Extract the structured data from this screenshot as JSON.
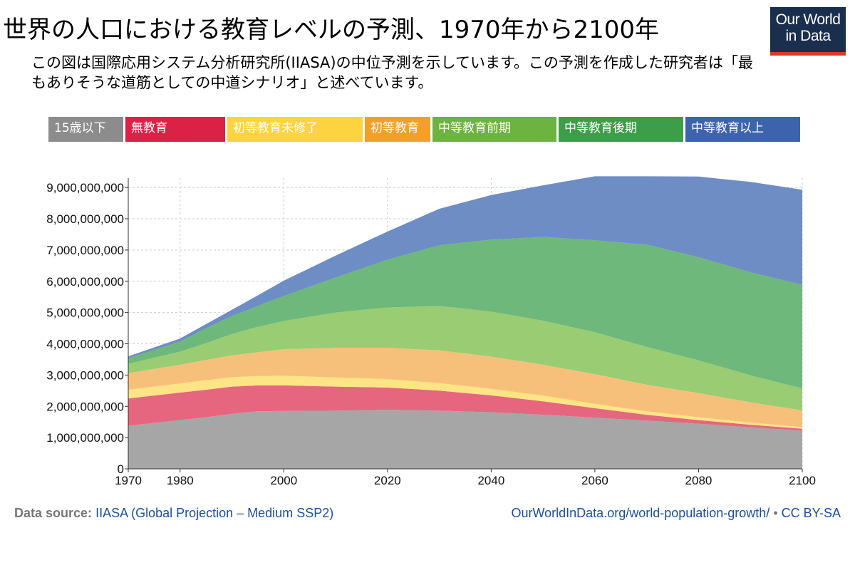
{
  "title": "世界の人口における教育レベルの予測、1970年から2100年",
  "subtitle": "この図は国際応用システム分析研究所(IIASA)の中位予測を示しています。この予測を作成した研究者は「最もありそうな道筋としての中道シナリオ」と述べています。",
  "logo": {
    "line1": "Our World",
    "line2": "in Data",
    "bg": "#1a2e4e",
    "accent": "#d73b22"
  },
  "footer": {
    "source_label": "Data source:",
    "source_text": "IIASA (Global Projection – Medium SSP2)",
    "url": "OurWorldInData.org/world-population-growth/",
    "separator": " • ",
    "license": "CC BY-SA"
  },
  "chart_data": {
    "type": "area",
    "stacked": true,
    "grid": true,
    "legend_position": "top",
    "x_ticks": [
      1970,
      1980,
      2000,
      2020,
      2040,
      2060,
      2080,
      2100
    ],
    "y_ticks": [
      0,
      1000000000,
      2000000000,
      3000000000,
      4000000000,
      5000000000,
      6000000000,
      7000000000,
      8000000000,
      9000000000
    ],
    "y_tick_labels": [
      "0",
      "1,000,000,000",
      "2,000,000,000",
      "3,000,000,000",
      "4,000,000,000",
      "5,000,000,000",
      "6,000,000,000",
      "7,000,000,000",
      "8,000,000,000",
      "9,000,000,000"
    ],
    "xlim": [
      1970,
      2100
    ],
    "ylim": [
      0,
      9300000000
    ],
    "x": [
      1970,
      1980,
      1985,
      1990,
      1995,
      2000,
      2010,
      2020,
      2030,
      2040,
      2050,
      2060,
      2070,
      2080,
      2090,
      2100
    ],
    "series": [
      {
        "name": "15歳以下",
        "color": "#8c8c8c",
        "fill": "#a6a6a6",
        "values": [
          1380000000,
          1560000000,
          1650000000,
          1760000000,
          1840000000,
          1850000000,
          1860000000,
          1890000000,
          1860000000,
          1810000000,
          1730000000,
          1640000000,
          1540000000,
          1440000000,
          1330000000,
          1220000000
        ]
      },
      {
        "name": "無教育",
        "color": "#dc2146",
        "fill": "#e6667f",
        "values": [
          870000000,
          880000000,
          880000000,
          870000000,
          830000000,
          820000000,
          770000000,
          710000000,
          640000000,
          540000000,
          430000000,
          300000000,
          190000000,
          120000000,
          80000000,
          60000000
        ]
      },
      {
        "name": "初等教育未修了",
        "color": "#fdd43f",
        "fill": "#fde485",
        "values": [
          280000000,
          290000000,
          300000000,
          300000000,
          300000000,
          310000000,
          290000000,
          270000000,
          240000000,
          210000000,
          180000000,
          140000000,
          110000000,
          90000000,
          70000000,
          60000000
        ]
      },
      {
        "name": "初等教育",
        "color": "#f4a027",
        "fill": "#f7c07a",
        "values": [
          530000000,
          600000000,
          650000000,
          700000000,
          760000000,
          850000000,
          950000000,
          1000000000,
          1050000000,
          1030000000,
          990000000,
          950000000,
          850000000,
          770000000,
          650000000,
          530000000
        ]
      },
      {
        "name": "中等教育前期",
        "color": "#6db33f",
        "fill": "#99cc73",
        "values": [
          300000000,
          420000000,
          540000000,
          680000000,
          810000000,
          900000000,
          1130000000,
          1290000000,
          1420000000,
          1440000000,
          1410000000,
          1340000000,
          1210000000,
          1050000000,
          860000000,
          700000000
        ]
      },
      {
        "name": "中等教育後期",
        "color": "#3c9e48",
        "fill": "#6db87a",
        "values": [
          180000000,
          320000000,
          480000000,
          580000000,
          670000000,
          800000000,
          1120000000,
          1530000000,
          1940000000,
          2300000000,
          2680000000,
          2940000000,
          3270000000,
          3300000000,
          3300000000,
          3320000000
        ]
      },
      {
        "name": "中等教育以上",
        "color": "#3e63ad",
        "fill": "#6d8dc4",
        "values": [
          60000000,
          100000000,
          130000000,
          200000000,
          340000000,
          490000000,
          700000000,
          900000000,
          1170000000,
          1430000000,
          1650000000,
          2050000000,
          2190000000,
          2580000000,
          2890000000,
          3040000000
        ]
      }
    ]
  }
}
